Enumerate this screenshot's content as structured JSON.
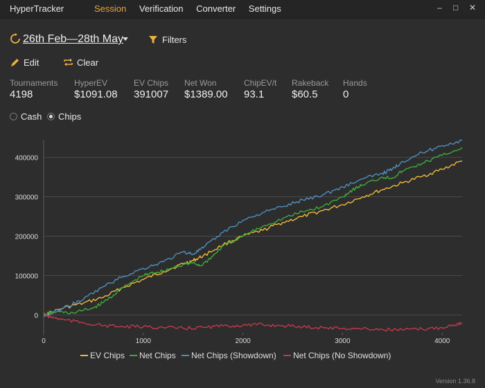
{
  "app": {
    "title": "HyperTracker",
    "nav": [
      "Session",
      "Verification",
      "Converter",
      "Settings"
    ],
    "active_nav": "Session",
    "window_controls": [
      "–",
      "□",
      "✕"
    ],
    "version": "Version 1.36.8"
  },
  "toolbar": {
    "date_range": "26th Feb—28th May",
    "filters_label": "Filters",
    "edit_label": "Edit",
    "clear_label": "Clear"
  },
  "stats": [
    {
      "label": "Tournaments",
      "value": "4198"
    },
    {
      "label": "HyperEV",
      "value": "$1091.08"
    },
    {
      "label": "EV Chips",
      "value": "391007"
    },
    {
      "label": "Net Won",
      "value": "$1389.00"
    },
    {
      "label": "ChipEV/t",
      "value": "93.1"
    },
    {
      "label": "Rakeback",
      "value": "$60.5"
    },
    {
      "label": "Hands",
      "value": "0"
    }
  ],
  "mode": {
    "options": [
      "Cash",
      "Chips"
    ],
    "selected": "Chips"
  },
  "icons": {
    "refresh": "refresh-icon",
    "filter": "filter-icon",
    "edit": "pencil-icon",
    "clear": "repeat-icon"
  },
  "chart_data": {
    "type": "line",
    "x_ticks": [
      0,
      1000,
      2000,
      3000,
      4000
    ],
    "y_ticks": [
      0,
      100000,
      200000,
      300000,
      400000
    ],
    "xlim": [
      0,
      4200
    ],
    "ylim": [
      -45000,
      445000
    ],
    "grid": true,
    "legend_position": "bottom",
    "series": [
      {
        "name": "EV Chips",
        "color": "#f0b83c",
        "x": [
          0,
          200,
          400,
          600,
          800,
          1000,
          1200,
          1400,
          1500,
          1600,
          1800,
          2000,
          2200,
          2400,
          2600,
          2800,
          3000,
          3200,
          3400,
          3600,
          3800,
          4000,
          4200
        ],
        "y": [
          0,
          18000,
          30000,
          45000,
          70000,
          90000,
          110000,
          130000,
          138000,
          150000,
          178000,
          200000,
          215000,
          235000,
          250000,
          265000,
          280000,
          300000,
          318000,
          335000,
          352000,
          370000,
          391000
        ]
      },
      {
        "name": "Net Chips",
        "color": "#3cac3c",
        "x": [
          0,
          100,
          300,
          500,
          600,
          800,
          1000,
          1100,
          1200,
          1400,
          1500,
          1580,
          1700,
          1800,
          2000,
          2200,
          2400,
          2600,
          2800,
          3000,
          3100,
          3200,
          3400,
          3500,
          3600,
          3800,
          4000,
          4200
        ],
        "y": [
          0,
          8000,
          5000,
          18000,
          32000,
          70000,
          100000,
          107000,
          112000,
          128000,
          132000,
          125000,
          150000,
          175000,
          200000,
          225000,
          245000,
          262000,
          275000,
          300000,
          318000,
          330000,
          350000,
          348000,
          365000,
          385000,
          405000,
          425000
        ]
      },
      {
        "name": "Net Chips (Showdown)",
        "color": "#4f8fbe",
        "x": [
          0,
          200,
          400,
          600,
          800,
          1000,
          1200,
          1400,
          1500,
          1600,
          1800,
          2000,
          2200,
          2400,
          2600,
          2800,
          3000,
          3200,
          3400,
          3500,
          3600,
          3800,
          4000,
          4200
        ],
        "y": [
          -5000,
          18000,
          40000,
          72000,
          98000,
          118000,
          135000,
          160000,
          155000,
          170000,
          210000,
          240000,
          260000,
          275000,
          292000,
          305000,
          325000,
          345000,
          360000,
          370000,
          390000,
          412000,
          430000,
          443000
        ]
      },
      {
        "name": "Net Chips (No Showdown)",
        "color": "#c23a4a",
        "x": [
          0,
          100,
          200,
          400,
          600,
          800,
          1000,
          1200,
          1400,
          1600,
          1800,
          2000,
          2200,
          2400,
          2600,
          2800,
          3000,
          3200,
          3400,
          3600,
          3800,
          4000,
          4100,
          4200
        ],
        "y": [
          0,
          -7000,
          -12000,
          -20000,
          -27000,
          -30000,
          -30000,
          -32000,
          -34000,
          -32000,
          -28000,
          -26000,
          -25000,
          -27000,
          -30000,
          -32000,
          -34000,
          -35000,
          -37000,
          -38000,
          -36000,
          -32000,
          -25000,
          -21000
        ]
      }
    ]
  }
}
